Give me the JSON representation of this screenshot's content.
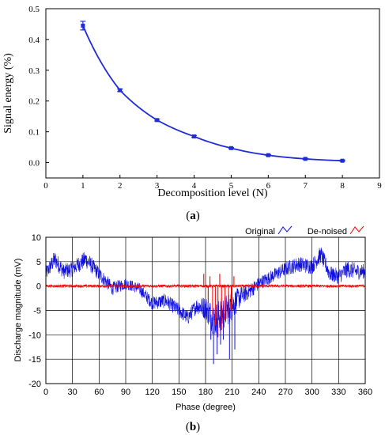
{
  "panel_a_label": "a",
  "panel_b_label": "b",
  "chart_data": [
    {
      "type": "line",
      "panel": "a",
      "xlabel": "Decomposition level (N)",
      "ylabel": "Signal energy (%)",
      "xlim": [
        0,
        9
      ],
      "ylim": [
        -0.05,
        0.5
      ],
      "xticks": [
        "0",
        "1",
        "2",
        "3",
        "4",
        "5",
        "6",
        "7",
        "8",
        "9"
      ],
      "yticks": [
        "0.0",
        "0.1",
        "0.2",
        "0.3",
        "0.4",
        "0.5"
      ],
      "grid": false,
      "color": "#1f2bd6",
      "series": [
        {
          "x": [
            1,
            2,
            3,
            4,
            5,
            6,
            7,
            8
          ],
          "y": [
            0.445,
            0.235,
            0.138,
            0.085,
            0.047,
            0.024,
            0.012,
            0.006
          ],
          "error": [
            0.014,
            0.004,
            0.003,
            0.003,
            0.002,
            0.002,
            0.002,
            0.002
          ]
        }
      ]
    },
    {
      "type": "line",
      "panel": "b",
      "xlabel": "Phase (degree)",
      "ylabel": "Discharge magnitude (mV)",
      "xlim": [
        0,
        360
      ],
      "ylim": [
        -20,
        10
      ],
      "xticks": [
        "0",
        "30",
        "60",
        "90",
        "120",
        "150",
        "180",
        "210",
        "240",
        "270",
        "300",
        "330",
        "360"
      ],
      "yticks": [
        "10",
        "5",
        "0",
        "-5",
        "-10",
        "-15",
        "-20"
      ],
      "grid": true,
      "legend_position": "top-right",
      "series": [
        {
          "name": "Original",
          "color": "#1010e0",
          "envelope_x": [
            0,
            10,
            20,
            30,
            45,
            60,
            75,
            90,
            105,
            120,
            135,
            150,
            160,
            170,
            180,
            190,
            200,
            210,
            220,
            230,
            240,
            255,
            270,
            285,
            300,
            310,
            320,
            330,
            340,
            350,
            360
          ],
          "envelope_center": [
            2.5,
            5.5,
            3,
            3.5,
            5.5,
            2.5,
            -0.5,
            0.5,
            -0.5,
            -3.5,
            -3,
            -5,
            -6.5,
            -4,
            -4.5,
            -7,
            -5.5,
            -4,
            -2,
            -1,
            0.5,
            2,
            3.5,
            4.5,
            4,
            6.5,
            2.5,
            2,
            3.5,
            3,
            3
          ],
          "envelope_halfwidth": [
            1.5,
            1.8,
            1.6,
            1.6,
            1.8,
            1.5,
            1.4,
            1.2,
            1.2,
            1.4,
            1.5,
            1.5,
            1.5,
            1.6,
            2.5,
            3.5,
            3.5,
            3.0,
            2.0,
            1.6,
            1.4,
            1.4,
            1.5,
            1.6,
            1.6,
            1.8,
            1.6,
            1.6,
            1.8,
            1.7,
            1.5
          ],
          "spikes": [
            {
              "x": 189,
              "y": -16
            },
            {
              "x": 193,
              "y": -14
            },
            {
              "x": 197,
              "y": -12
            },
            {
              "x": 200,
              "y": -11
            },
            {
              "x": 207,
              "y": -15
            },
            {
              "x": 213,
              "y": -13
            },
            {
              "x": 186,
              "y": -11
            }
          ]
        },
        {
          "name": "De-noised",
          "color": "#ff0000",
          "noise_halfwidth": 0.3,
          "spikes": [
            {
              "x": 178,
              "y": 2.5
            },
            {
              "x": 183,
              "y": -3.5
            },
            {
              "x": 188,
              "y": -6
            },
            {
              "x": 191,
              "y": -8
            },
            {
              "x": 194,
              "y": -10.5
            },
            {
              "x": 198,
              "y": -9
            },
            {
              "x": 202,
              "y": -7
            },
            {
              "x": 206,
              "y": -6.5
            },
            {
              "x": 209,
              "y": -5
            },
            {
              "x": 212,
              "y": 2
            },
            {
              "x": 185,
              "y": 2
            },
            {
              "x": 196,
              "y": 2.5
            }
          ]
        }
      ]
    }
  ]
}
